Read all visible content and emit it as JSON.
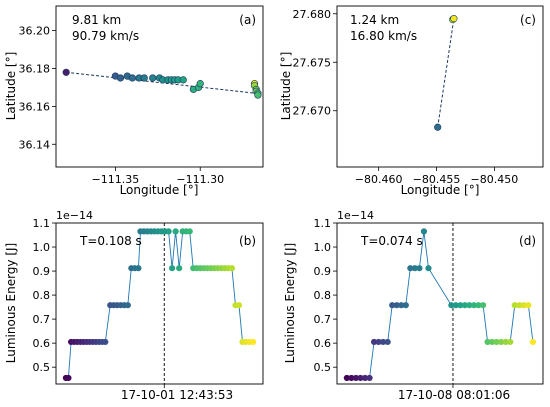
{
  "chart_data": [
    {
      "id": "a",
      "type": "scatter",
      "panel_label": "(a)",
      "annotation_lines": [
        "9.81 km",
        "90.79 km/s"
      ],
      "xlabel": "Longitude [°]",
      "ylabel": "Latitude [°]",
      "xlim": [
        -111.385,
        -111.263
      ],
      "ylim": [
        36.128,
        36.213
      ],
      "xticks": [
        -111.35,
        -111.3
      ],
      "xtick_labels": [
        "−111.35",
        "−111.30"
      ],
      "yticks": [
        36.14,
        36.16,
        36.18,
        36.2
      ],
      "ytick_labels": [
        "36.14",
        "36.16",
        "36.18",
        "36.20"
      ],
      "line": {
        "x": [
          -111.379,
          -111.268
        ],
        "y": [
          36.178,
          36.167
        ]
      },
      "points": [
        {
          "x": -111.379,
          "y": 36.178,
          "c": 0.08
        },
        {
          "x": -111.35,
          "y": 36.176,
          "c": 0.28
        },
        {
          "x": -111.347,
          "y": 36.175,
          "c": 0.3
        },
        {
          "x": -111.343,
          "y": 36.176,
          "c": 0.34
        },
        {
          "x": -111.34,
          "y": 36.175,
          "c": 0.36
        },
        {
          "x": -111.336,
          "y": 36.175,
          "c": 0.4
        },
        {
          "x": -111.333,
          "y": 36.175,
          "c": 0.42
        },
        {
          "x": -111.328,
          "y": 36.175,
          "c": 0.45
        },
        {
          "x": -111.324,
          "y": 36.175,
          "c": 0.48
        },
        {
          "x": -111.322,
          "y": 36.174,
          "c": 0.5
        },
        {
          "x": -111.319,
          "y": 36.174,
          "c": 0.52
        },
        {
          "x": -111.317,
          "y": 36.174,
          "c": 0.54
        },
        {
          "x": -111.315,
          "y": 36.174,
          "c": 0.55
        },
        {
          "x": -111.313,
          "y": 36.174,
          "c": 0.56
        },
        {
          "x": -111.31,
          "y": 36.174,
          "c": 0.58
        },
        {
          "x": -111.304,
          "y": 36.169,
          "c": 0.62
        },
        {
          "x": -111.301,
          "y": 36.17,
          "c": 0.64
        },
        {
          "x": -111.3,
          "y": 36.172,
          "c": 0.66
        },
        {
          "x": -111.268,
          "y": 36.172,
          "c": 0.98
        },
        {
          "x": -111.268,
          "y": 36.171,
          "c": 0.85
        },
        {
          "x": -111.267,
          "y": 36.169,
          "c": 0.8
        },
        {
          "x": -111.267,
          "y": 36.168,
          "c": 0.76
        },
        {
          "x": -111.266,
          "y": 36.167,
          "c": 0.72
        },
        {
          "x": -111.266,
          "y": 36.166,
          "c": 0.7
        }
      ]
    },
    {
      "id": "c",
      "type": "scatter",
      "panel_label": "(c)",
      "annotation_lines": [
        "1.24 km",
        "16.80 km/s"
      ],
      "xlabel": "Longitude [°]",
      "ylabel": "Latitude [°]",
      "xlim": [
        -80.4636,
        -80.4458
      ],
      "ylim": [
        27.6642,
        27.6808
      ],
      "xticks": [
        -80.46,
        -80.455,
        -80.45
      ],
      "xtick_labels": [
        "−80.460",
        "−80.455",
        "−80.450"
      ],
      "yticks": [
        27.67,
        27.675,
        27.68
      ],
      "ytick_labels": [
        "27.670",
        "27.675",
        "27.680"
      ],
      "line": {
        "x": [
          -80.4549,
          -80.4535
        ],
        "y": [
          27.6683,
          27.6795
        ]
      },
      "points": [
        {
          "x": -80.4549,
          "y": 27.6683,
          "c": 0.35
        },
        {
          "x": -80.4536,
          "y": 27.6794,
          "c": 0.9
        },
        {
          "x": -80.4535,
          "y": 27.6795,
          "c": 0.98
        }
      ]
    },
    {
      "id": "b",
      "type": "line",
      "panel_label": "(b)",
      "offset_text": "1e−14",
      "annotation": "T=0.108 s",
      "xlabel": "17-10-01 12:43:53",
      "ylabel": "Luminous Energy [J]",
      "ylim": [
        0.43,
        1.1
      ],
      "yticks": [
        0.5,
        0.6,
        0.7,
        0.8,
        0.9,
        1.0,
        1.1
      ],
      "ytick_labels": [
        "0.5",
        "0.6",
        "0.7",
        "0.8",
        "0.9",
        "1.0",
        "1.1"
      ],
      "xlim": [
        0,
        1
      ],
      "vline_x": 0.523,
      "points": [
        {
          "x": 0.048,
          "y": 0.455
        },
        {
          "x": 0.06,
          "y": 0.455
        },
        {
          "x": 0.073,
          "y": 0.605
        },
        {
          "x": 0.088,
          "y": 0.605
        },
        {
          "x": 0.103,
          "y": 0.605
        },
        {
          "x": 0.118,
          "y": 0.605
        },
        {
          "x": 0.133,
          "y": 0.605
        },
        {
          "x": 0.148,
          "y": 0.605
        },
        {
          "x": 0.163,
          "y": 0.605
        },
        {
          "x": 0.178,
          "y": 0.605
        },
        {
          "x": 0.193,
          "y": 0.605
        },
        {
          "x": 0.208,
          "y": 0.605
        },
        {
          "x": 0.223,
          "y": 0.605
        },
        {
          "x": 0.238,
          "y": 0.605
        },
        {
          "x": 0.262,
          "y": 0.758
        },
        {
          "x": 0.279,
          "y": 0.758
        },
        {
          "x": 0.296,
          "y": 0.758
        },
        {
          "x": 0.313,
          "y": 0.758
        },
        {
          "x": 0.33,
          "y": 0.758
        },
        {
          "x": 0.347,
          "y": 0.758
        },
        {
          "x": 0.364,
          "y": 0.912
        },
        {
          "x": 0.381,
          "y": 0.912
        },
        {
          "x": 0.398,
          "y": 0.912
        },
        {
          "x": 0.408,
          "y": 1.065
        },
        {
          "x": 0.425,
          "y": 1.065
        },
        {
          "x": 0.442,
          "y": 1.065
        },
        {
          "x": 0.459,
          "y": 1.065
        },
        {
          "x": 0.476,
          "y": 1.065
        },
        {
          "x": 0.493,
          "y": 1.065
        },
        {
          "x": 0.51,
          "y": 1.065
        },
        {
          "x": 0.527,
          "y": 1.065
        },
        {
          "x": 0.544,
          "y": 1.065
        },
        {
          "x": 0.561,
          "y": 0.912
        },
        {
          "x": 0.578,
          "y": 1.065
        },
        {
          "x": 0.595,
          "y": 0.912
        },
        {
          "x": 0.612,
          "y": 1.065
        },
        {
          "x": 0.629,
          "y": 1.065
        },
        {
          "x": 0.646,
          "y": 1.065
        },
        {
          "x": 0.663,
          "y": 0.912
        },
        {
          "x": 0.68,
          "y": 0.912
        },
        {
          "x": 0.697,
          "y": 0.912
        },
        {
          "x": 0.714,
          "y": 0.912
        },
        {
          "x": 0.731,
          "y": 0.912
        },
        {
          "x": 0.748,
          "y": 0.912
        },
        {
          "x": 0.765,
          "y": 0.912
        },
        {
          "x": 0.782,
          "y": 0.912
        },
        {
          "x": 0.799,
          "y": 0.912
        },
        {
          "x": 0.816,
          "y": 0.912
        },
        {
          "x": 0.833,
          "y": 0.912
        },
        {
          "x": 0.85,
          "y": 0.912
        },
        {
          "x": 0.867,
          "y": 0.758
        },
        {
          "x": 0.884,
          "y": 0.758
        },
        {
          "x": 0.901,
          "y": 0.605
        },
        {
          "x": 0.918,
          "y": 0.605
        },
        {
          "x": 0.935,
          "y": 0.605
        },
        {
          "x": 0.952,
          "y": 0.605
        }
      ]
    },
    {
      "id": "d",
      "type": "line",
      "panel_label": "(d)",
      "offset_text": "1e−14",
      "annotation": "T=0.074 s",
      "xlabel": "17-10-08 08:01:06",
      "ylabel": "Luminous Energy [J]",
      "ylim": [
        0.43,
        1.1
      ],
      "yticks": [
        0.5,
        0.6,
        0.7,
        0.8,
        0.9,
        1.0,
        1.1
      ],
      "ytick_labels": [
        "0.5",
        "0.6",
        "0.7",
        "0.8",
        "0.9",
        "1.0",
        "1.1"
      ],
      "xlim": [
        0,
        1
      ],
      "vline_x": 0.563,
      "points": [
        {
          "x": 0.048,
          "y": 0.455
        },
        {
          "x": 0.07,
          "y": 0.455
        },
        {
          "x": 0.092,
          "y": 0.455
        },
        {
          "x": 0.114,
          "y": 0.455
        },
        {
          "x": 0.136,
          "y": 0.455
        },
        {
          "x": 0.158,
          "y": 0.455
        },
        {
          "x": 0.18,
          "y": 0.605
        },
        {
          "x": 0.202,
          "y": 0.605
        },
        {
          "x": 0.224,
          "y": 0.605
        },
        {
          "x": 0.246,
          "y": 0.605
        },
        {
          "x": 0.268,
          "y": 0.758
        },
        {
          "x": 0.29,
          "y": 0.758
        },
        {
          "x": 0.312,
          "y": 0.758
        },
        {
          "x": 0.334,
          "y": 0.758
        },
        {
          "x": 0.356,
          "y": 0.912
        },
        {
          "x": 0.378,
          "y": 0.912
        },
        {
          "x": 0.4,
          "y": 0.912
        },
        {
          "x": 0.422,
          "y": 1.065
        },
        {
          "x": 0.444,
          "y": 0.912
        },
        {
          "x": 0.555,
          "y": 0.758
        },
        {
          "x": 0.577,
          "y": 0.758
        },
        {
          "x": 0.599,
          "y": 0.758
        },
        {
          "x": 0.621,
          "y": 0.758
        },
        {
          "x": 0.643,
          "y": 0.758
        },
        {
          "x": 0.665,
          "y": 0.758
        },
        {
          "x": 0.687,
          "y": 0.758
        },
        {
          "x": 0.709,
          "y": 0.758
        },
        {
          "x": 0.731,
          "y": 0.605
        },
        {
          "x": 0.753,
          "y": 0.605
        },
        {
          "x": 0.775,
          "y": 0.605
        },
        {
          "x": 0.797,
          "y": 0.605
        },
        {
          "x": 0.819,
          "y": 0.605
        },
        {
          "x": 0.841,
          "y": 0.605
        },
        {
          "x": 0.863,
          "y": 0.758
        },
        {
          "x": 0.885,
          "y": 0.758
        },
        {
          "x": 0.907,
          "y": 0.758
        },
        {
          "x": 0.929,
          "y": 0.758
        },
        {
          "x": 0.951,
          "y": 0.605
        }
      ]
    }
  ],
  "colors": {
    "line": "#1f77b4",
    "marker_edge": "#1a3a5c",
    "vline": "#000000",
    "colormap": "viridis"
  }
}
